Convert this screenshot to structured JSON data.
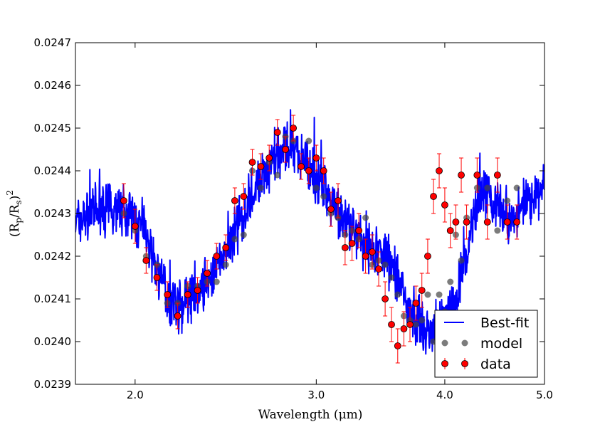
{
  "chart_data": {
    "type": "scatter",
    "title": "",
    "xlabel": "Wavelength  (μm)",
    "ylabel": "(Rp/Rs)²",
    "ylabel_parts": {
      "open": "(R",
      "sub1": "p",
      "slash": "/R",
      "sub2": "s",
      "close": ")",
      "sup": "2"
    },
    "xscale": "log",
    "xlim": [
      1.75,
      5.0
    ],
    "ylim": [
      0.0239,
      0.0247
    ],
    "xticks": [
      2.0,
      3.0,
      4.0,
      5.0
    ],
    "xtick_labels": [
      "2.0",
      "3.0",
      "4.0",
      "5.0"
    ],
    "yticks": [
      0.0239,
      0.024,
      0.0241,
      0.0242,
      0.0243,
      0.0244,
      0.0245,
      0.0246,
      0.0247
    ],
    "ytick_labels": [
      "0.0239",
      "0.0240",
      "0.0241",
      "0.0242",
      "0.0243",
      "0.0244",
      "0.0245",
      "0.0246",
      "0.0247"
    ],
    "grid": false,
    "legend_position": "bottom-right",
    "colors": {
      "best_fit": "#0000ff",
      "model": "#444444",
      "data": "#ff0000",
      "errorbar": "#ff0000"
    },
    "series": [
      {
        "name": "Best-fit",
        "kind": "line",
        "x": [
          1.75,
          1.85,
          1.95,
          2.05,
          2.1,
          2.15,
          2.2,
          2.3,
          2.4,
          2.5,
          2.6,
          2.7,
          2.8,
          2.9,
          3.0,
          3.1,
          3.2,
          3.3,
          3.4,
          3.5,
          3.6,
          3.7,
          3.8,
          3.9,
          4.0,
          4.1,
          4.2,
          4.3,
          4.4,
          4.5,
          4.6,
          4.7,
          4.8,
          5.0
        ],
        "y": [
          0.02428,
          0.02431,
          0.02432,
          0.02424,
          0.02417,
          0.0241,
          0.02408,
          0.02411,
          0.02417,
          0.02425,
          0.02435,
          0.0244,
          0.02446,
          0.02444,
          0.02438,
          0.02433,
          0.02428,
          0.02424,
          0.02422,
          0.0242,
          0.02415,
          0.02408,
          0.02403,
          0.02402,
          0.02406,
          0.0241,
          0.0242,
          0.02432,
          0.02435,
          0.02432,
          0.02428,
          0.0243,
          0.02434,
          0.02435
        ]
      },
      {
        "name": "model",
        "kind": "points",
        "x": [
          1.95,
          2.0,
          2.05,
          2.1,
          2.15,
          2.2,
          2.25,
          2.3,
          2.35,
          2.4,
          2.45,
          2.5,
          2.55,
          2.6,
          2.65,
          2.7,
          2.75,
          2.8,
          2.85,
          2.9,
          2.95,
          3.0,
          3.05,
          3.1,
          3.15,
          3.2,
          3.25,
          3.3,
          3.35,
          3.4,
          3.45,
          3.5,
          3.55,
          3.6,
          3.65,
          3.7,
          3.75,
          3.8,
          3.85,
          3.9,
          3.95,
          4.0,
          4.05,
          4.1,
          4.15,
          4.2,
          4.3,
          4.4,
          4.5,
          4.6,
          4.7
        ],
        "y": [
          0.0243,
          0.02426,
          0.0242,
          0.02418,
          0.02409,
          0.02409,
          0.02413,
          0.02413,
          0.02414,
          0.02414,
          0.02418,
          0.02424,
          0.02425,
          0.0244,
          0.02436,
          0.02442,
          0.02439,
          0.02448,
          0.02447,
          0.02441,
          0.02447,
          0.02436,
          0.02434,
          0.0243,
          0.02429,
          0.02425,
          0.02426,
          0.02424,
          0.02429,
          0.02418,
          0.02419,
          0.02418,
          0.02415,
          0.02411,
          0.02406,
          0.02405,
          0.02404,
          0.02405,
          0.02411,
          0.024,
          0.02411,
          0.02407,
          0.02414,
          0.02425,
          0.02419,
          0.02429,
          0.02436,
          0.02436,
          0.02426,
          0.02433,
          0.02436
        ]
      },
      {
        "name": "data",
        "kind": "errorbar",
        "x": [
          1.95,
          2.0,
          2.05,
          2.1,
          2.15,
          2.2,
          2.25,
          2.3,
          2.35,
          2.4,
          2.45,
          2.5,
          2.55,
          2.6,
          2.65,
          2.7,
          2.75,
          2.8,
          2.85,
          2.9,
          2.95,
          3.0,
          3.05,
          3.1,
          3.15,
          3.2,
          3.25,
          3.3,
          3.35,
          3.4,
          3.45,
          3.5,
          3.55,
          3.6,
          3.65,
          3.7,
          3.75,
          3.8,
          3.85,
          3.9,
          3.95,
          4.0,
          4.05,
          4.1,
          4.15,
          4.2,
          4.3,
          4.4,
          4.5,
          4.6,
          4.7
        ],
        "y": [
          0.02433,
          0.02427,
          0.02419,
          0.02415,
          0.02411,
          0.02406,
          0.02411,
          0.02412,
          0.02416,
          0.0242,
          0.02422,
          0.02433,
          0.02434,
          0.02442,
          0.02441,
          0.02443,
          0.02449,
          0.02445,
          0.0245,
          0.02441,
          0.0244,
          0.02443,
          0.0244,
          0.02431,
          0.02433,
          0.02422,
          0.02423,
          0.02426,
          0.0242,
          0.02421,
          0.02417,
          0.0241,
          0.02404,
          0.02399,
          0.02403,
          0.02404,
          0.02409,
          0.02412,
          0.0242,
          0.02434,
          0.0244,
          0.02432,
          0.02426,
          0.02428,
          0.02439,
          0.02428,
          0.02439,
          0.02428,
          0.02439,
          0.02428,
          0.02428
        ],
        "yerr": [
          4e-05,
          4e-05,
          3e-05,
          3e-05,
          3e-05,
          3e-05,
          3e-05,
          3e-05,
          3e-05,
          3e-05,
          3e-05,
          3e-05,
          3e-05,
          3e-05,
          3e-05,
          3e-05,
          3e-05,
          3e-05,
          3e-05,
          3e-05,
          3e-05,
          3e-05,
          3e-05,
          4e-05,
          4e-05,
          4e-05,
          4e-05,
          4e-05,
          4e-05,
          4e-05,
          4e-05,
          4e-05,
          4e-05,
          4e-05,
          4e-05,
          4e-05,
          4e-05,
          4e-05,
          4e-05,
          4e-05,
          4e-05,
          4e-05,
          4e-05,
          4e-05,
          4e-05,
          4e-05,
          4e-05,
          4e-05,
          4e-05,
          4e-05,
          4e-05
        ]
      }
    ]
  }
}
